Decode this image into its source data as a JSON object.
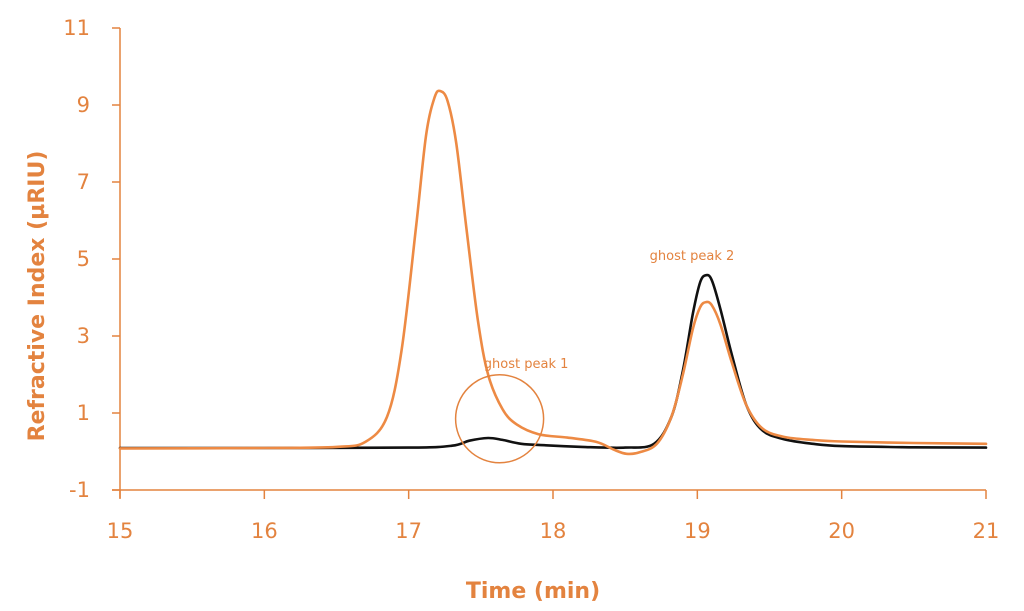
{
  "colors": {
    "axis": "#E3833F",
    "series_orange": "#ED8A44",
    "series_black": "#111111",
    "background": "#FFFFFF"
  },
  "chart_data": {
    "type": "line",
    "title": "",
    "xlabel": "Time (min)",
    "ylabel": "Refractive Index (µRIU)",
    "xlim": [
      15,
      21
    ],
    "ylim": [
      -1,
      11
    ],
    "xticks": [
      15,
      16,
      17,
      18,
      19,
      20,
      21
    ],
    "yticks": [
      -1,
      1,
      3,
      5,
      7,
      9,
      11
    ],
    "grid": false,
    "legend": null,
    "series": [
      {
        "name": "orange trace",
        "color": "#ED8A44",
        "x": [
          15.0,
          16.0,
          16.5,
          16.7,
          16.85,
          16.95,
          17.05,
          17.12,
          17.18,
          17.22,
          17.27,
          17.33,
          17.4,
          17.48,
          17.55,
          17.65,
          17.75,
          17.9,
          18.1,
          18.3,
          18.42,
          18.51,
          18.6,
          18.72,
          18.82,
          18.9,
          18.97,
          19.02,
          19.06,
          19.1,
          19.16,
          19.24,
          19.34,
          19.45,
          19.6,
          19.8,
          20.0,
          20.5,
          21.0
        ],
        "y": [
          0.08,
          0.09,
          0.12,
          0.25,
          0.9,
          2.6,
          5.8,
          8.2,
          9.2,
          9.36,
          9.1,
          8.0,
          5.8,
          3.4,
          2.0,
          1.1,
          0.7,
          0.45,
          0.36,
          0.25,
          0.05,
          -0.06,
          -0.02,
          0.2,
          0.9,
          2.0,
          3.2,
          3.75,
          3.88,
          3.8,
          3.3,
          2.3,
          1.2,
          0.6,
          0.38,
          0.3,
          0.26,
          0.22,
          0.2
        ]
      },
      {
        "name": "black trace",
        "color": "#111111",
        "x": [
          15.0,
          16.0,
          17.0,
          17.3,
          17.42,
          17.55,
          17.65,
          17.78,
          17.95,
          18.2,
          18.5,
          18.7,
          18.82,
          18.9,
          18.97,
          19.02,
          19.06,
          19.1,
          19.16,
          19.24,
          19.34,
          19.45,
          19.6,
          19.8,
          20.0,
          20.5,
          21.0
        ],
        "y": [
          0.09,
          0.09,
          0.1,
          0.15,
          0.28,
          0.35,
          0.3,
          0.2,
          0.16,
          0.12,
          0.1,
          0.2,
          0.9,
          2.1,
          3.6,
          4.4,
          4.58,
          4.45,
          3.7,
          2.5,
          1.2,
          0.55,
          0.32,
          0.2,
          0.14,
          0.11,
          0.1
        ]
      }
    ],
    "annotations": [
      {
        "text": "ghost peak 1",
        "x": 17.95,
        "y": 2.3,
        "shape": "circle",
        "circle_center": [
          17.63,
          0.85
        ],
        "circle_radius_px": 44
      },
      {
        "text": "ghost peak 2",
        "x": 19.03,
        "y": 5.1
      }
    ]
  },
  "labels": {
    "xlabel": "Time (min)",
    "ylabel": "Refractive Index (µRIU)",
    "annotation_1": "ghost peak 1",
    "annotation_2": "ghost peak 2"
  }
}
